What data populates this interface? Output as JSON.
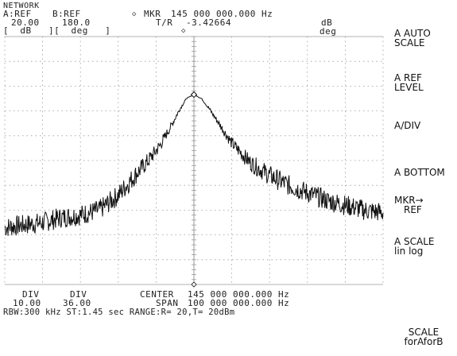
{
  "header": {
    "mode": "NETWORK",
    "a_ref_label": "A:REF",
    "b_ref_label": "B:REF",
    "a_ref_value": "20.00",
    "b_ref_value": "180.0",
    "a_unit_bracket": "[  dB   ][  deg   ]",
    "marker_symbol": "◇",
    "marker_label": "MKR",
    "marker_freq": "145 000 000.000 Hz",
    "marker_sub_label": "T/R",
    "marker_value": "-3.42664",
    "marker_unit_1": "dB",
    "marker_unit_2": "deg",
    "marker_sub_symbol": "◇"
  },
  "softkeys": [
    {
      "line1": "A AUTO",
      "line2": "SCALE"
    },
    {
      "line1": "A REF",
      "line2": "LEVEL"
    },
    {
      "line1": "A/DIV",
      "line2": ""
    },
    {
      "line1": "A BOTTOM",
      "line2": ""
    },
    {
      "line1": "MKR→",
      "line2": "REF"
    },
    {
      "line1": "A SCALE",
      "line2": "lin log"
    },
    {
      "line1": "SCALE",
      "line2": "forAforB"
    }
  ],
  "footer": {
    "div_a_label": "DIV",
    "div_b_label": "DIV",
    "div_a_value": "10.00",
    "div_b_value": "36.00",
    "center_label": "CENTER",
    "center_value": "145 000 000.000 Hz",
    "span_label": "SPAN",
    "span_value": "100 000 000.000 Hz",
    "status_line": "RBW:300 kHz ST:1.45 sec RANGE:R= 20,T= 20dBm"
  },
  "colors": {
    "trace": "#111111",
    "grid": "#9a9a9a",
    "background": "#ffffff"
  },
  "chart_data": {
    "type": "line",
    "title": "",
    "xlabel": "",
    "ylabel": "",
    "xlim": [
      95000000,
      195000000
    ],
    "ylim": [
      -80,
      20
    ],
    "x_divisions": 10,
    "y_divisions": 10,
    "grid": true,
    "marker": {
      "x": 145000000,
      "y": -3.42664
    },
    "series": [
      {
        "x": [
          95000000,
          100000000,
          105000000,
          110000000,
          115000000,
          120000000,
          125000000,
          130000000,
          133000000,
          136000000,
          139000000,
          141000000,
          143000000,
          145000000,
          147000000,
          149000000,
          152000000,
          155000000,
          160000000,
          165000000,
          170000000,
          175000000,
          180000000,
          185000000,
          190000000,
          195000000
        ],
        "values": [
          -57,
          -56,
          -55,
          -53,
          -52,
          -50,
          -44,
          -35,
          -30,
          -24,
          -16,
          -10,
          -5,
          -3.4,
          -5,
          -9,
          -16,
          -23,
          -31,
          -36,
          -40,
          -43,
          -46,
          -48,
          -50,
          -51
        ]
      }
    ]
  }
}
